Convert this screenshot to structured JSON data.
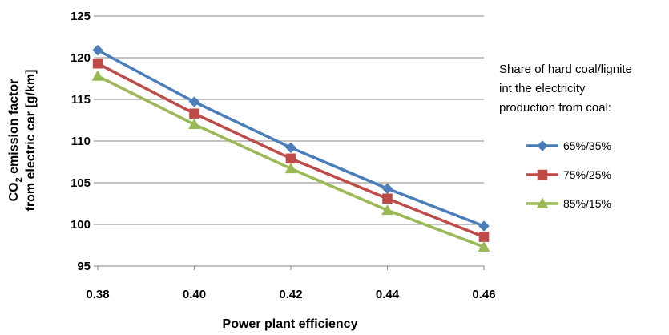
{
  "chart_data": {
    "type": "line",
    "xlabel": "Power plant efficiency",
    "ylabel": {
      "line1_prefix": "CO",
      "line1_sub": "2",
      "line1_suffix": " emission factor",
      "line2": "from electric car [g/km]"
    },
    "x": [
      0.38,
      0.4,
      0.42,
      0.44,
      0.46
    ],
    "x_tick_labels": [
      "0.38",
      "0.40",
      "0.42",
      "0.44",
      "0.46"
    ],
    "y_ticks": [
      95,
      100,
      105,
      110,
      115,
      120,
      125
    ],
    "y_tick_labels": [
      "95",
      "100",
      "105",
      "110",
      "115",
      "120",
      "125"
    ],
    "xlim": [
      0.38,
      0.46
    ],
    "ylim": [
      95,
      125
    ],
    "grid": "horizontal",
    "legend": {
      "placement": "right",
      "title_lines": [
        "Share of hard coal/lignite",
        "int the electricity",
        "production from coal:"
      ]
    },
    "series": [
      {
        "name": "65%/35%",
        "marker": "diamond",
        "color": "#4a7ebb",
        "values": [
          120.9,
          114.7,
          109.2,
          104.3,
          99.8
        ]
      },
      {
        "name": "75%/25%",
        "marker": "square",
        "color": "#be4b48",
        "values": [
          119.3,
          113.3,
          107.9,
          103.1,
          98.5
        ]
      },
      {
        "name": "85%/15%",
        "marker": "triangle",
        "color": "#98b954",
        "values": [
          117.8,
          112.0,
          106.7,
          101.7,
          97.3
        ]
      }
    ]
  }
}
